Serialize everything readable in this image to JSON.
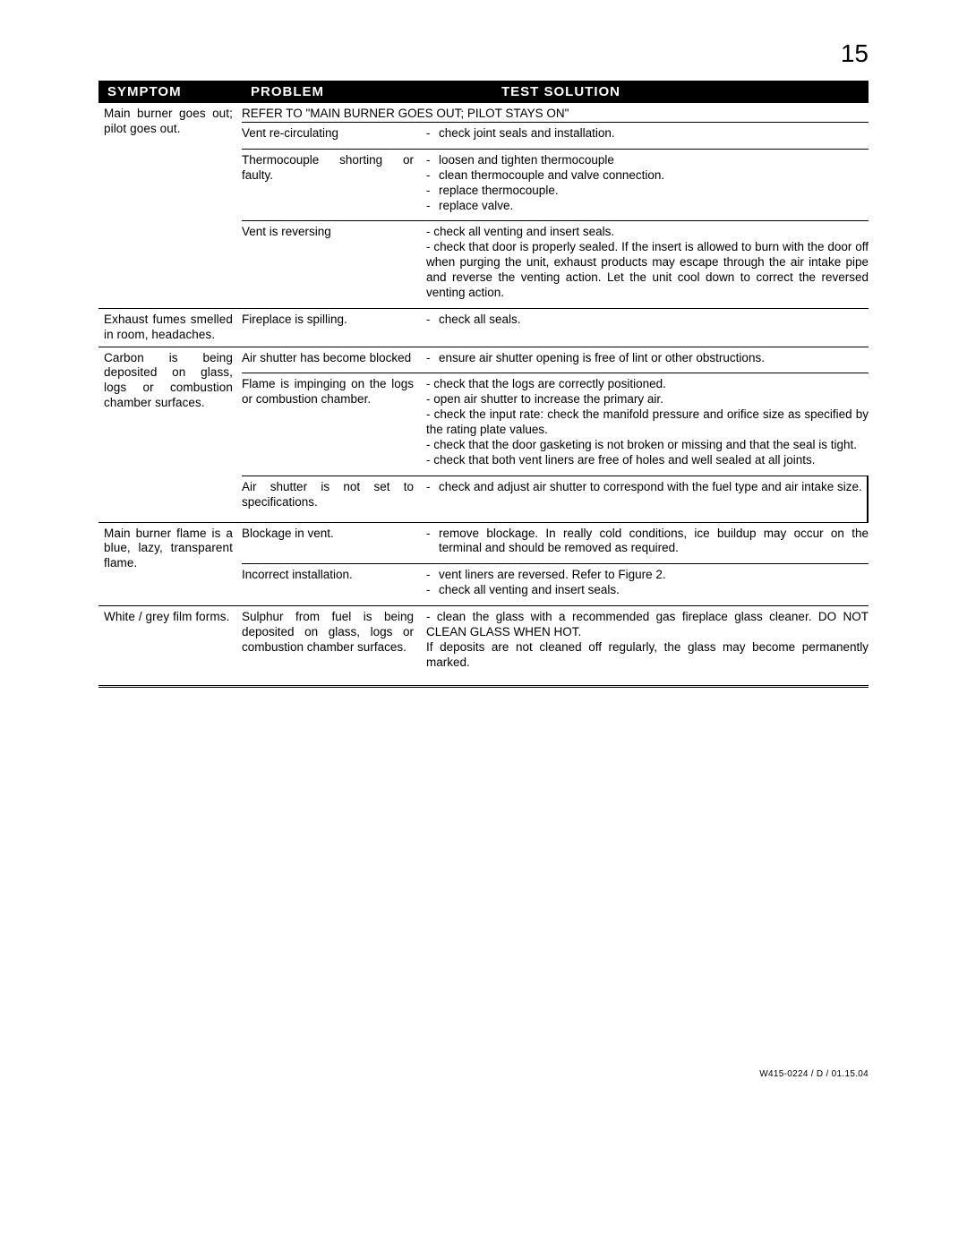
{
  "page_number": "15",
  "footer": "W415-0224 / D / 01.15.04",
  "headers": {
    "symptom": "SYMPTOM",
    "problem": "PROBLEM",
    "solution": "TEST SOLUTION"
  },
  "groups": [
    {
      "symptom": "Main burner goes out; pilot goes out.",
      "refer": "REFER TO \"MAIN BURNER GOES OUT; PILOT STAYS ON\"",
      "rows": [
        {
          "problem": "Vent re-circulating",
          "solutions": [
            "check joint seals and installation."
          ]
        },
        {
          "problem": "Thermocouple shorting or faulty.",
          "solutions": [
            "loosen and tighten thermocouple",
            "clean thermocouple and valve connection.",
            "replace thermocouple.",
            "replace valve."
          ]
        },
        {
          "problem": "Vent is reversing",
          "solutions_text": "-  check all venting and insert seals.\n-  check that door is properly sealed. If the insert is allowed to burn with the door off when purging the unit, exhaust products may escape through the air intake pipe and reverse the venting action. Let the unit cool down to correct the reversed venting action."
        }
      ]
    },
    {
      "symptom": "Exhaust fumes smelled in room, headaches.",
      "rows": [
        {
          "problem": "Fireplace is spilling.",
          "solutions": [
            "check all seals."
          ]
        }
      ]
    },
    {
      "symptom": "Carbon is being deposited on glass, logs or combustion chamber surfaces.",
      "rows": [
        {
          "problem": "Air shutter has become blocked",
          "solutions": [
            "ensure air shutter opening is free of lint or other obstructions."
          ]
        },
        {
          "problem": "Flame is impinging on the logs or combustion chamber.",
          "solutions_text": "-  check that the logs are correctly positioned.\n-  open air shutter to increase the primary air.\n-  check the input rate: check the manifold pressure and orifice size as specified by the rating plate values.\n-  check that the door gasketing is not broken or missing and that the seal is tight.\n-  check that both vent liners are free of holes and well sealed at all joints."
        },
        {
          "problem": "Air shutter is not set to specifications.",
          "solutions": [
            "check and adjust air shutter to correspond with the fuel type and air intake size."
          ],
          "vbar": true,
          "extra_pad": true
        }
      ]
    },
    {
      "symptom": "Main burner flame is a blue, lazy, transparent flame.",
      "rows": [
        {
          "problem": "Blockage in vent.",
          "solutions": [
            "remove blockage. In really cold conditions, ice buildup may occur on the terminal and should be removed as required."
          ]
        },
        {
          "problem": "Incorrect installation.",
          "solutions": [
            "vent liners are reversed. Refer to Figure 2.",
            "check all venting and insert seals."
          ]
        }
      ]
    },
    {
      "symptom": "White / grey film forms.",
      "rows": [
        {
          "problem": "Sulphur from fuel is being deposited on glass, logs or combustion chamber surfaces.",
          "solutions_text": "-   clean the glass with a recommended gas fireplace glass cleaner. DO NOT CLEAN GLASS WHEN HOT.\nIf deposits are not cleaned off regularly, the glass may become permanently marked."
        }
      ]
    }
  ]
}
